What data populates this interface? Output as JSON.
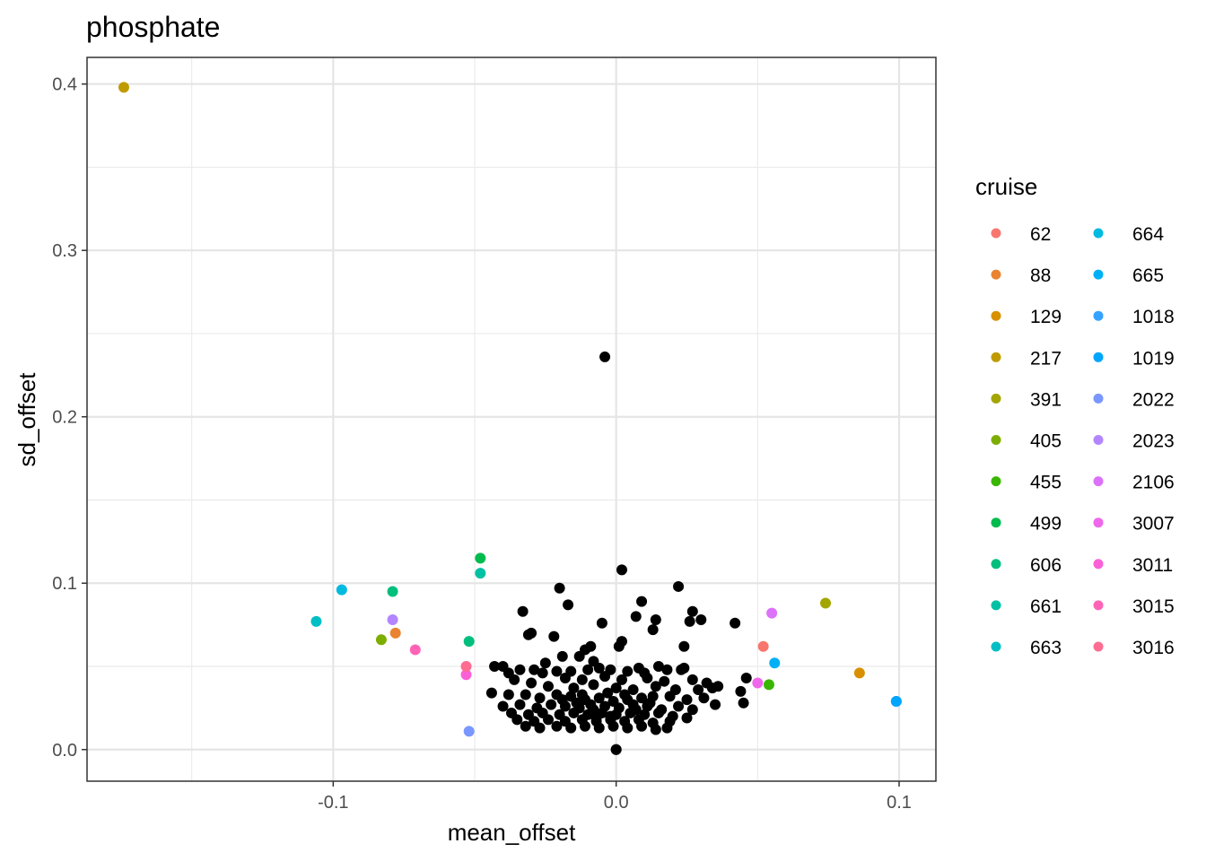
{
  "chart_data": {
    "type": "scatter",
    "title": "phosphate",
    "xlabel": "mean_offset",
    "ylabel": "sd_offset",
    "xlim": [
      -0.187,
      0.113
    ],
    "ylim": [
      -0.019,
      0.416
    ],
    "x_ticks": [
      -0.1,
      0.0,
      0.1
    ],
    "x_tick_labels": [
      "-0.1",
      "0.0",
      "0.1"
    ],
    "y_ticks": [
      0.0,
      0.1,
      0.2,
      0.3,
      0.4
    ],
    "y_tick_labels": [
      "0.0",
      "0.1",
      "0.2",
      "0.3",
      "0.4"
    ],
    "grid": true,
    "legend_title": "cruise",
    "legend_position": "right",
    "series": [
      {
        "name": "62",
        "color": "#F8766D",
        "points": [
          [
            0.052,
            0.062
          ]
        ]
      },
      {
        "name": "88",
        "color": "#EA8331",
        "points": [
          [
            -0.078,
            0.07
          ]
        ]
      },
      {
        "name": "129",
        "color": "#D89000",
        "points": [
          [
            0.086,
            0.046
          ]
        ]
      },
      {
        "name": "217",
        "color": "#C09B00",
        "points": [
          [
            -0.174,
            0.398
          ]
        ]
      },
      {
        "name": "391",
        "color": "#A3A500",
        "points": [
          [
            0.074,
            0.088
          ]
        ]
      },
      {
        "name": "405",
        "color": "#7CAE00",
        "points": [
          [
            -0.083,
            0.066
          ]
        ]
      },
      {
        "name": "455",
        "color": "#39B600",
        "points": [
          [
            0.054,
            0.039
          ]
        ]
      },
      {
        "name": "499",
        "color": "#00BB4E",
        "points": [
          [
            -0.048,
            0.115
          ]
        ]
      },
      {
        "name": "606",
        "color": "#00BF7D",
        "points": [
          [
            -0.052,
            0.065
          ],
          [
            -0.079,
            0.095
          ]
        ]
      },
      {
        "name": "661",
        "color": "#00C1A3",
        "points": [
          [
            -0.048,
            0.106
          ]
        ]
      },
      {
        "name": "663",
        "color": "#00BFC4",
        "points": [
          [
            -0.106,
            0.077
          ]
        ]
      },
      {
        "name": "664",
        "color": "#00BAE0",
        "points": [
          [
            -0.097,
            0.096
          ]
        ]
      },
      {
        "name": "665",
        "color": "#00B0F6",
        "points": [
          [
            0.056,
            0.052
          ]
        ]
      },
      {
        "name": "1018",
        "color": "#35A2FF",
        "points": [
          [
            0.099,
            0.029
          ]
        ]
      },
      {
        "name": "1019",
        "color": "#00A5FF",
        "points": [
          [
            0.099,
            0.029
          ]
        ]
      },
      {
        "name": "2022",
        "color": "#7997FF",
        "points": [
          [
            -0.052,
            0.011
          ]
        ]
      },
      {
        "name": "2023",
        "color": "#B385FF",
        "points": [
          [
            -0.079,
            0.078
          ]
        ]
      },
      {
        "name": "2106",
        "color": "#DC71FA",
        "points": [
          [
            0.055,
            0.082
          ]
        ]
      },
      {
        "name": "3007",
        "color": "#EF67EB",
        "points": [
          [
            0.05,
            0.04
          ]
        ]
      },
      {
        "name": "3011",
        "color": "#FB61D7",
        "points": [
          [
            -0.053,
            0.045
          ]
        ]
      },
      {
        "name": "3015",
        "color": "#FF63B6",
        "points": [
          [
            -0.071,
            0.06
          ]
        ]
      },
      {
        "name": "3016",
        "color": "#FF6C91",
        "points": [
          [
            -0.053,
            0.05
          ]
        ]
      }
    ],
    "ungrouped_color": "#000000",
    "ungrouped_points": [
      [
        -0.004,
        0.236
      ],
      [
        0.002,
        0.108
      ],
      [
        0.022,
        0.098
      ],
      [
        -0.02,
        0.097
      ],
      [
        0.009,
        0.089
      ],
      [
        -0.017,
        0.087
      ],
      [
        0.027,
        0.083
      ],
      [
        -0.033,
        0.083
      ],
      [
        0.007,
        0.08
      ],
      [
        0.03,
        0.078
      ],
      [
        0.014,
        0.078
      ],
      [
        0.042,
        0.076
      ],
      [
        0.026,
        0.077
      ],
      [
        -0.005,
        0.076
      ],
      [
        0.013,
        0.072
      ],
      [
        -0.03,
        0.07
      ],
      [
        -0.031,
        0.069
      ],
      [
        -0.022,
        0.068
      ],
      [
        0.002,
        0.065
      ],
      [
        -0.009,
        0.062
      ],
      [
        -0.019,
        0.056
      ],
      [
        -0.013,
        0.056
      ],
      [
        -0.008,
        0.053
      ],
      [
        0.024,
        0.062
      ],
      [
        0.001,
        0.062
      ],
      [
        -0.011,
        0.06
      ],
      [
        -0.025,
        0.052
      ],
      [
        -0.034,
        0.048
      ],
      [
        0.046,
        0.043
      ],
      [
        0.023,
        0.048
      ],
      [
        0.008,
        0.049
      ],
      [
        0.015,
        0.05
      ],
      [
        -0.043,
        0.05
      ],
      [
        -0.04,
        0.05
      ],
      [
        -0.038,
        0.046
      ],
      [
        -0.029,
        0.048
      ],
      [
        -0.021,
        0.047
      ],
      [
        -0.016,
        0.047
      ],
      [
        -0.01,
        0.048
      ],
      [
        -0.006,
        0.049
      ],
      [
        -0.002,
        0.048
      ],
      [
        0.004,
        0.047
      ],
      [
        0.01,
        0.046
      ],
      [
        0.018,
        0.048
      ],
      [
        0.024,
        0.049
      ],
      [
        -0.026,
        0.046
      ],
      [
        -0.018,
        0.043
      ],
      [
        -0.012,
        0.042
      ],
      [
        -0.004,
        0.044
      ],
      [
        0.002,
        0.042
      ],
      [
        0.011,
        0.043
      ],
      [
        0.017,
        0.041
      ],
      [
        0.027,
        0.042
      ],
      [
        0.032,
        0.04
      ],
      [
        0.036,
        0.038
      ],
      [
        0.044,
        0.035
      ],
      [
        -0.036,
        0.042
      ],
      [
        -0.03,
        0.04
      ],
      [
        -0.024,
        0.038
      ],
      [
        -0.015,
        0.037
      ],
      [
        -0.008,
        0.039
      ],
      [
        0.0,
        0.037
      ],
      [
        0.006,
        0.036
      ],
      [
        0.014,
        0.038
      ],
      [
        0.021,
        0.036
      ],
      [
        0.029,
        0.036
      ],
      [
        0.034,
        0.037
      ],
      [
        0.045,
        0.028
      ],
      [
        -0.044,
        0.034
      ],
      [
        -0.038,
        0.033
      ],
      [
        -0.032,
        0.033
      ],
      [
        -0.027,
        0.031
      ],
      [
        -0.021,
        0.033
      ],
      [
        -0.016,
        0.032
      ],
      [
        -0.011,
        0.03
      ],
      [
        -0.006,
        0.031
      ],
      [
        -0.001,
        0.029
      ],
      [
        0.004,
        0.03
      ],
      [
        0.009,
        0.031
      ],
      [
        0.013,
        0.032
      ],
      [
        0.019,
        0.032
      ],
      [
        0.025,
        0.03
      ],
      [
        0.031,
        0.031
      ],
      [
        0.035,
        0.027
      ],
      [
        -0.04,
        0.026
      ],
      [
        -0.034,
        0.027
      ],
      [
        -0.028,
        0.025
      ],
      [
        -0.023,
        0.027
      ],
      [
        -0.018,
        0.026
      ],
      [
        -0.013,
        0.025
      ],
      [
        -0.009,
        0.027
      ],
      [
        -0.004,
        0.026
      ],
      [
        0.001,
        0.025
      ],
      [
        0.006,
        0.027
      ],
      [
        0.011,
        0.026
      ],
      [
        0.016,
        0.024
      ],
      [
        0.022,
        0.026
      ],
      [
        0.027,
        0.024
      ],
      [
        -0.037,
        0.022
      ],
      [
        -0.031,
        0.021
      ],
      [
        -0.026,
        0.022
      ],
      [
        -0.02,
        0.021
      ],
      [
        -0.015,
        0.022
      ],
      [
        -0.01,
        0.021
      ],
      [
        -0.005,
        0.022
      ],
      [
        0.0,
        0.021
      ],
      [
        0.005,
        0.022
      ],
      [
        0.01,
        0.021
      ],
      [
        0.015,
        0.022
      ],
      [
        0.02,
        0.02
      ],
      [
        0.025,
        0.019
      ],
      [
        -0.035,
        0.018
      ],
      [
        -0.029,
        0.017
      ],
      [
        -0.024,
        0.018
      ],
      [
        -0.018,
        0.017
      ],
      [
        -0.012,
        0.018
      ],
      [
        -0.007,
        0.017
      ],
      [
        -0.002,
        0.018
      ],
      [
        0.003,
        0.017
      ],
      [
        0.008,
        0.018
      ],
      [
        0.013,
        0.016
      ],
      [
        0.019,
        0.017
      ],
      [
        -0.032,
        0.014
      ],
      [
        -0.027,
        0.013
      ],
      [
        -0.021,
        0.014
      ],
      [
        -0.016,
        0.013
      ],
      [
        -0.011,
        0.014
      ],
      [
        -0.006,
        0.013
      ],
      [
        -0.001,
        0.014
      ],
      [
        0.004,
        0.013
      ],
      [
        0.009,
        0.014
      ],
      [
        0.014,
        0.012
      ],
      [
        0.018,
        0.013
      ],
      [
        -0.014,
        0.028
      ],
      [
        -0.008,
        0.024
      ],
      [
        -0.003,
        0.034
      ],
      [
        0.003,
        0.033
      ],
      [
        -0.019,
        0.03
      ],
      [
        0.012,
        0.028
      ],
      [
        -0.002,
        0.02
      ],
      [
        0.0,
        0.0
      ],
      [
        0.0,
        0.0
      ],
      [
        -0.007,
        0.019
      ],
      [
        -0.012,
        0.033
      ],
      [
        0.007,
        0.024
      ]
    ]
  }
}
